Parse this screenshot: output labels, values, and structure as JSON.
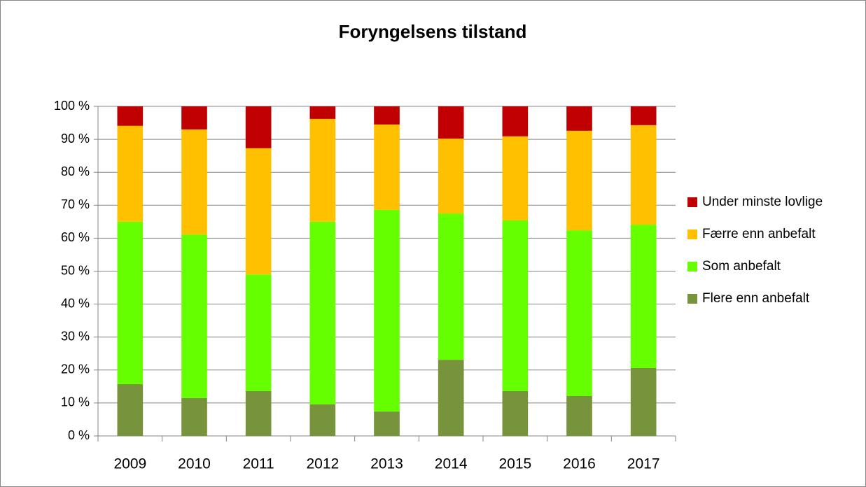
{
  "chart_data": {
    "type": "stacked_bar",
    "title": "Foryngelsens tilstand",
    "categories": [
      "2009",
      "2010",
      "2011",
      "2012",
      "2013",
      "2014",
      "2015",
      "2016",
      "2017"
    ],
    "series": [
      {
        "name": "Flere enn anbefalt",
        "color": "#77933c",
        "values": [
          15.7,
          11.5,
          13.6,
          9.6,
          7.4,
          23.1,
          13.6,
          12.1,
          20.6
        ]
      },
      {
        "name": "Som anbefalt",
        "color": "#66ff00",
        "values": [
          49.3,
          49.6,
          35.4,
          55.4,
          61.2,
          44.4,
          51.8,
          50.3,
          43.5
        ]
      },
      {
        "name": "Færre enn anbefalt",
        "color": "#ffc000",
        "values": [
          29.1,
          31.9,
          38.3,
          31.2,
          25.9,
          22.7,
          25.5,
          30.2,
          30.2
        ]
      },
      {
        "name": "Under minste lovlige",
        "color": "#c00000",
        "values": [
          5.9,
          7.0,
          12.7,
          3.8,
          5.5,
          9.8,
          9.1,
          7.4,
          5.7
        ]
      }
    ],
    "ylim": [
      0,
      100
    ],
    "yticks": [
      {
        "value": 0,
        "label": "0 %"
      },
      {
        "value": 10,
        "label": "10 %"
      },
      {
        "value": 20,
        "label": "20 %"
      },
      {
        "value": 30,
        "label": "30 %"
      },
      {
        "value": 40,
        "label": "40 %"
      },
      {
        "value": 50,
        "label": "50 %"
      },
      {
        "value": 60,
        "label": "60 %"
      },
      {
        "value": 70,
        "label": "70 %"
      },
      {
        "value": 80,
        "label": "80 %"
      },
      {
        "value": 90,
        "label": "90 %"
      },
      {
        "value": 100,
        "label": "100 %"
      }
    ],
    "grid": true,
    "legend": "right"
  }
}
